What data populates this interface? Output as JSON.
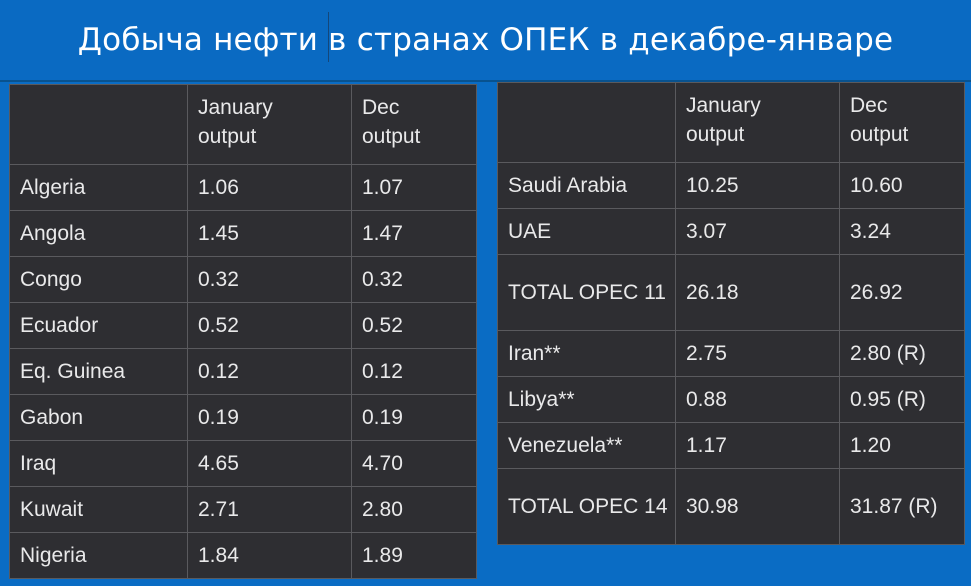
{
  "title": "Добыча нефти в странах ОПЕК в декабре-январе",
  "left_table": {
    "headers": [
      "",
      "January\noutput",
      "Dec\noutput"
    ],
    "rows": [
      {
        "country": "Algeria",
        "jan": "1.06",
        "dec": "1.07"
      },
      {
        "country": "Angola",
        "jan": "1.45",
        "dec": "1.47"
      },
      {
        "country": "Congo",
        "jan": "0.32",
        "dec": "0.32"
      },
      {
        "country": "Ecuador",
        "jan": "0.52",
        "dec": "0.52"
      },
      {
        "country": "Eq. Guinea",
        "jan": "0.12",
        "dec": "0.12"
      },
      {
        "country": "Gabon",
        "jan": "0.19",
        "dec": "0.19"
      },
      {
        "country": "Iraq",
        "jan": "4.65",
        "dec": "4.70"
      },
      {
        "country": "Kuwait",
        "jan": "2.71",
        "dec": "2.80"
      },
      {
        "country": "Nigeria",
        "jan": "1.84",
        "dec": "1.89"
      }
    ]
  },
  "right_table": {
    "headers": [
      "",
      "January\noutput",
      "Dec\noutput"
    ],
    "rows": [
      {
        "country": "Saudi Arabia",
        "jan": "10.25",
        "dec": "10.60"
      },
      {
        "country": "UAE",
        "jan": "3.07",
        "dec": "3.24"
      },
      {
        "country": "TOTAL OPEC 11",
        "jan": "26.18",
        "dec": "26.92"
      },
      {
        "country": "Iran**",
        "jan": "2.75",
        "dec": "2.80 (R)"
      },
      {
        "country": "Libya**",
        "jan": "0.88",
        "dec": "0.95 (R)"
      },
      {
        "country": "Venezuela**",
        "jan": "1.17",
        "dec": "1.20"
      },
      {
        "country": "TOTAL OPEC 14",
        "jan": "30.98",
        "dec": "31.87 (R)"
      }
    ]
  }
}
